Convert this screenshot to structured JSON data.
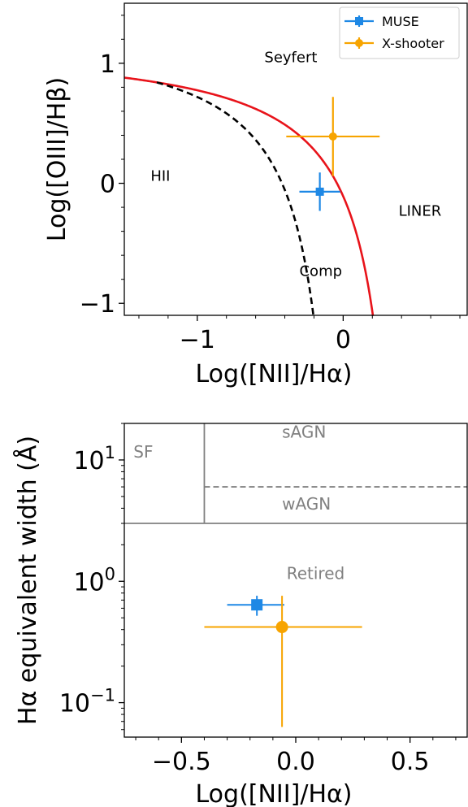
{
  "chart_data": [
    {
      "type": "scatter",
      "xlabel": "Log([NII]/Hα)",
      "ylabel": "Log([OIII]/Hβ)",
      "xlim": [
        -1.5,
        0.85
      ],
      "ylim": [
        -1.1,
        1.5
      ],
      "x_ticks": [
        {
          "value": -1,
          "label": "−1"
        },
        {
          "value": 0,
          "label": "0"
        }
      ],
      "y_ticks": [
        {
          "value": 1,
          "label": "1"
        },
        {
          "value": 0,
          "label": "0"
        },
        {
          "value": -1,
          "label": "−1"
        }
      ],
      "x_minor_step": 0.2,
      "y_minor_step": 0.2,
      "legend": "upper right",
      "series": [
        {
          "name": "MUSE",
          "color": "#1e88e5",
          "marker": "square",
          "points": [
            {
              "x": -0.16,
              "y": -0.07,
              "xerr": 0.14,
              "yerr": 0.16
            }
          ]
        },
        {
          "name": "X-shooter",
          "color": "#f7a400",
          "marker": "circle",
          "points": [
            {
              "x": -0.07,
              "y": 0.39,
              "xerr": 0.32,
              "yerr": 0.33
            }
          ]
        }
      ],
      "curves": [
        {
          "id": "kewley",
          "color": "#e8131a",
          "style": "solid",
          "x_max": 0.21
        },
        {
          "id": "kauffmann",
          "color": "#000000",
          "style": "dashed",
          "x_max": -0.19
        }
      ],
      "region_labels": [
        {
          "text": "Seyfert",
          "x": -0.54,
          "y": 1.01
        },
        {
          "text": "HII",
          "x": -1.32,
          "y": 0.02
        },
        {
          "text": "LINER",
          "x": 0.38,
          "y": -0.27
        },
        {
          "text": "Comp",
          "x": -0.3,
          "y": -0.77
        }
      ]
    },
    {
      "type": "scatter",
      "xlabel": "Log([NII]/Hα)",
      "ylabel": "Hα equivalent width (Å)",
      "xlim": [
        -0.75,
        0.75
      ],
      "ylim": [
        0.052,
        20
      ],
      "yscale": "log",
      "x_ticks": [
        {
          "value": -0.5,
          "label": "−0.5"
        },
        {
          "value": 0,
          "label": "0.0"
        },
        {
          "value": 0.5,
          "label": "0.5"
        }
      ],
      "y_ticks": [
        {
          "value": 10,
          "base": "10",
          "exp": "1"
        },
        {
          "value": 1,
          "base": "10",
          "exp": "0"
        },
        {
          "value": 0.1,
          "base": "10",
          "exp": "−1"
        }
      ],
      "x_minor_step": 0.1,
      "series": [
        {
          "name": "MUSE",
          "color": "#1e88e5",
          "marker": "square",
          "points": [
            {
              "x": -0.17,
              "y": 0.64,
              "x_low": -0.3,
              "x_high": -0.05,
              "y_low": 0.52,
              "y_high": 0.76
            }
          ]
        },
        {
          "name": "X-shooter",
          "color": "#f7a400",
          "marker": "circle",
          "points": [
            {
              "x": -0.06,
              "y": 0.42,
              "x_low": -0.4,
              "x_high": 0.29,
              "y_low": 0.063,
              "y_high": 0.76
            }
          ]
        }
      ],
      "divider_lines": [
        {
          "orientation": "vertical",
          "x": -0.4,
          "y_from": 3.0,
          "y_to": 20,
          "style": "solid"
        },
        {
          "orientation": "horizontal",
          "y": 3.0,
          "x_from": -0.75,
          "x_to": 0.75,
          "style": "solid"
        },
        {
          "orientation": "horizontal",
          "y": 6.0,
          "x_from": -0.4,
          "x_to": 0.75,
          "style": "dashed"
        }
      ],
      "region_labels": [
        {
          "text": "SF",
          "x": -0.71,
          "y": 10.5
        },
        {
          "text": "sAGN",
          "x": -0.06,
          "y": 15.3
        },
        {
          "text": "wAGN",
          "x": -0.06,
          "y": 3.9
        },
        {
          "text": "Retired",
          "x": -0.04,
          "y": 1.04
        }
      ]
    }
  ]
}
